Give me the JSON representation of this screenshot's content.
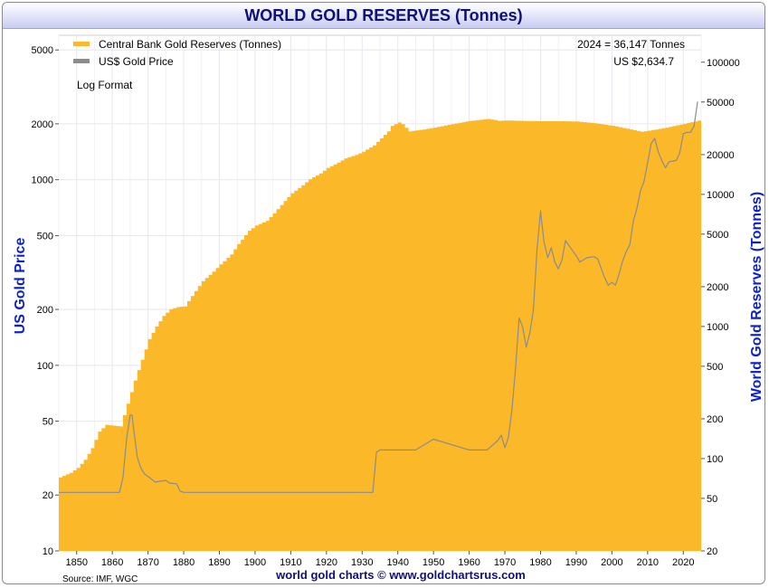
{
  "chart_data": {
    "type": "area",
    "title": "WORLD GOLD RESERVES (Tonnes)",
    "left_axis_label": "US Gold Price",
    "right_axis_label": "World Gold Reserves (Tonnes)",
    "log_note": "Log Format",
    "annotation_reserves": "2024 = 36,147 Tonnes",
    "annotation_price": "US $2,634.7",
    "source": "Source: IMF, WGC",
    "footer": "world gold charts © www.goldchartsrus.com",
    "colors": {
      "reserves": "#fbb829",
      "price": "#8c8c8c",
      "axis_title": "#0b1fd6",
      "title": "#10107a"
    },
    "x_range": [
      1845,
      2025
    ],
    "x_ticks": [
      1850,
      1860,
      1870,
      1880,
      1890,
      1900,
      1910,
      1920,
      1930,
      1940,
      1950,
      1960,
      1970,
      1980,
      1990,
      2000,
      2010,
      2020
    ],
    "left_axis": {
      "scale": "log",
      "range": [
        10,
        6000
      ],
      "ticks": [
        10,
        20,
        50,
        100,
        200,
        500,
        1000,
        2000,
        5000
      ]
    },
    "right_axis": {
      "scale": "log",
      "range": [
        20,
        160000
      ],
      "ticks": [
        20,
        50,
        100,
        200,
        500,
        1000,
        2000,
        5000,
        10000,
        20000,
        50000,
        100000
      ]
    },
    "series": [
      {
        "name": "Central Bank Gold Reserves (Tonnes)",
        "axis": "right",
        "x": [
          1845,
          1848,
          1850,
          1852,
          1854,
          1856,
          1858,
          1862,
          1864,
          1866,
          1868,
          1870,
          1872,
          1874,
          1876,
          1878,
          1880,
          1882,
          1885,
          1888,
          1890,
          1893,
          1895,
          1898,
          1900,
          1903,
          1905,
          1908,
          1910,
          1913,
          1915,
          1918,
          1920,
          1923,
          1925,
          1928,
          1930,
          1933,
          1935,
          1937,
          1938,
          1940,
          1941,
          1943,
          1945,
          1947,
          1950,
          1955,
          1960,
          1965,
          1967,
          1968,
          1970,
          1975,
          1980,
          1985,
          1990,
          1995,
          2000,
          2005,
          2008,
          2010,
          2015,
          2020,
          2024
        ],
        "values": [
          72,
          78,
          85,
          98,
          120,
          160,
          180,
          175,
          260,
          390,
          560,
          800,
          1000,
          1200,
          1350,
          1400,
          1420,
          1700,
          2200,
          2600,
          2950,
          3500,
          4200,
          5300,
          5800,
          6300,
          7200,
          8900,
          10200,
          11700,
          13000,
          14400,
          15800,
          17400,
          18700,
          19900,
          21000,
          23500,
          26500,
          30000,
          33000,
          35000,
          34000,
          30000,
          30500,
          31000,
          32000,
          34000,
          36000,
          37200,
          36500,
          36000,
          36200,
          36000,
          35800,
          35800,
          35600,
          34500,
          33000,
          31000,
          29800,
          30300,
          32000,
          34200,
          36147
        ]
      },
      {
        "name": "US$ Gold Price",
        "axis": "left",
        "x": [
          1845,
          1861,
          1862,
          1863,
          1864,
          1865,
          1865.5,
          1866,
          1867,
          1868,
          1869,
          1870,
          1872,
          1875,
          1876,
          1878,
          1879,
          1880,
          1933,
          1934,
          1935,
          1945,
          1950,
          1960,
          1965,
          1968,
          1969,
          1970,
          1971,
          1972,
          1973,
          1974,
          1975,
          1976,
          1977,
          1978,
          1979,
          1980,
          1980.2,
          1981,
          1982,
          1983,
          1984,
          1985,
          1986,
          1987,
          1988,
          1990,
          1991,
          1993,
          1995,
          1996,
          1998,
          1999,
          2000,
          2001,
          2002,
          2003,
          2004,
          2005,
          2006,
          2007,
          2008,
          2009,
          2010,
          2011,
          2012,
          2013,
          2014,
          2015,
          2016,
          2017,
          2018,
          2019,
          2020,
          2021,
          2022,
          2023,
          2024
        ],
        "values": [
          20.67,
          20.67,
          20.67,
          25,
          40,
          54,
          54,
          45,
          32,
          28,
          26,
          25.2,
          23.5,
          24,
          23.2,
          23,
          21,
          20.67,
          20.67,
          34,
          35,
          35,
          40,
          35,
          35,
          39.3,
          42,
          36,
          41,
          58,
          97,
          180,
          160,
          125,
          150,
          200,
          420,
          680,
          620,
          460,
          380,
          430,
          360,
          330,
          370,
          470,
          440,
          390,
          360,
          380,
          385,
          375,
          295,
          270,
          280,
          270,
          310,
          365,
          410,
          445,
          600,
          700,
          870,
          980,
          1230,
          1570,
          1670,
          1410,
          1265,
          1160,
          1250,
          1260,
          1270,
          1390,
          1770,
          1800,
          1800,
          1940,
          2634.7
        ]
      }
    ]
  }
}
